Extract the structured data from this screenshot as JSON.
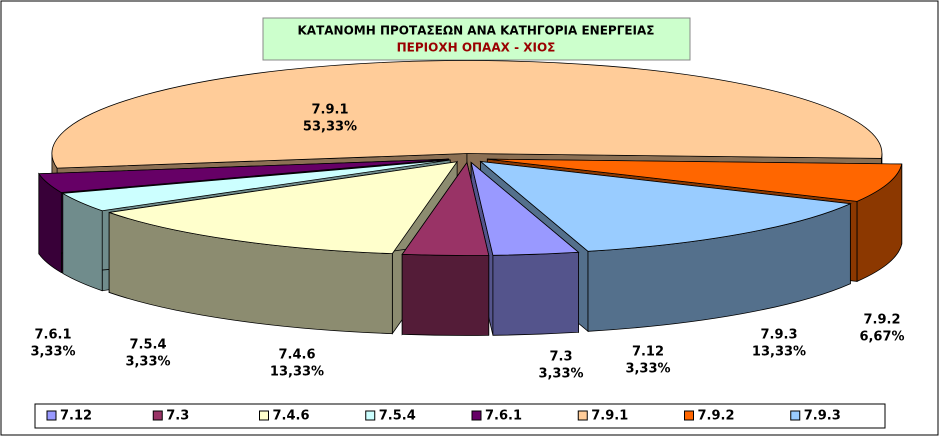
{
  "chart_data": {
    "type": "pie3d",
    "title": "ΚΑΤΑΝΟΜΗ ΠΡΟΤΑΣΕΩΝ ΑΝΑ ΚΑΤΗΓΟΡΙΑ ΕΝΕΡΓΕΙΑΣ",
    "subtitle": "ΠΕΡΙΟΧΗ ΟΠΑΑΧ - ΧΙΟΣ",
    "categories": [
      "7.12",
      "7.3",
      "7.4.6",
      "7.5.4",
      "7.6.1",
      "7.9.1",
      "7.9.2",
      "7.9.3"
    ],
    "values": [
      3.33,
      3.33,
      13.33,
      3.33,
      3.33,
      53.33,
      6.67,
      13.33
    ],
    "value_labels": [
      "3,33%",
      "3,33%",
      "13,33%",
      "3,33%",
      "3,33%",
      "53,33%",
      "6,67%",
      "13,33%"
    ],
    "colors": [
      "#9999ff",
      "#993366",
      "#ffffcc",
      "#ccffff",
      "#660066",
      "#ffcc99",
      "#ff6600",
      "#99ccff"
    ],
    "legend": "bottom"
  }
}
